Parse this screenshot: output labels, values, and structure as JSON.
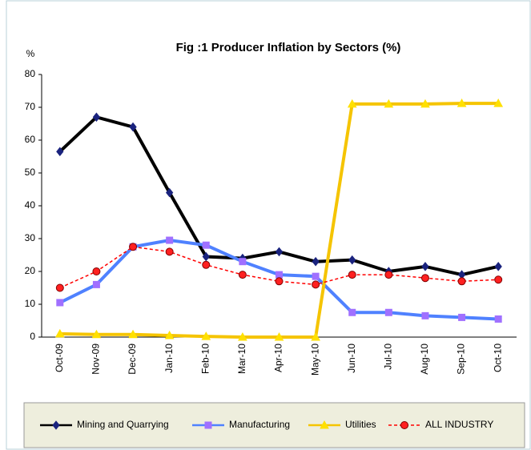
{
  "chart_data": {
    "type": "line",
    "title": "Fig :1 Producer Inflation by Sectors (%)",
    "y_label": "%",
    "categories": [
      "Oct-09",
      "Nov-09",
      "Dec-09",
      "Jan-10",
      "Feb-10",
      "Mar-10",
      "Apr-10",
      "May-10",
      "Jun-10",
      "Jul-10",
      "Aug-10",
      "Sep-10",
      "Oct-10"
    ],
    "series": [
      {
        "name": "Mining and Quarrying",
        "color": "#000000",
        "marker": "diamond",
        "marker_color": "#1a237e",
        "dashed": false,
        "values": [
          56.5,
          67,
          64,
          44,
          24.5,
          24,
          26,
          23,
          23.5,
          20,
          21.5,
          19,
          21.5
        ]
      },
      {
        "name": "Manufacturing",
        "color": "#4f81ff",
        "marker": "square",
        "marker_color": "#a070ff",
        "dashed": false,
        "values": [
          10.5,
          16,
          27.5,
          29.5,
          28,
          23,
          19,
          18.5,
          7.5,
          7.5,
          6.5,
          6,
          5.5
        ]
      },
      {
        "name": "Utilities",
        "color": "#f5c400",
        "marker": "triangle",
        "marker_color": "#ffe000",
        "dashed": false,
        "values": [
          1,
          0.8,
          0.8,
          0.5,
          0.2,
          0,
          0,
          0,
          71,
          71,
          71,
          71.2,
          71.2
        ]
      },
      {
        "name": "ALL INDUSTRY",
        "color": "#ff0000",
        "marker": "circle",
        "marker_color": "#dd0000",
        "dashed": true,
        "values": [
          15,
          20,
          27.5,
          26,
          22,
          19,
          17,
          16,
          19,
          19,
          18,
          17,
          17.5
        ]
      }
    ],
    "ylim": [
      0,
      80
    ],
    "yticks": [
      0,
      10,
      20,
      30,
      40,
      50,
      60,
      70,
      80
    ],
    "grid": false
  }
}
